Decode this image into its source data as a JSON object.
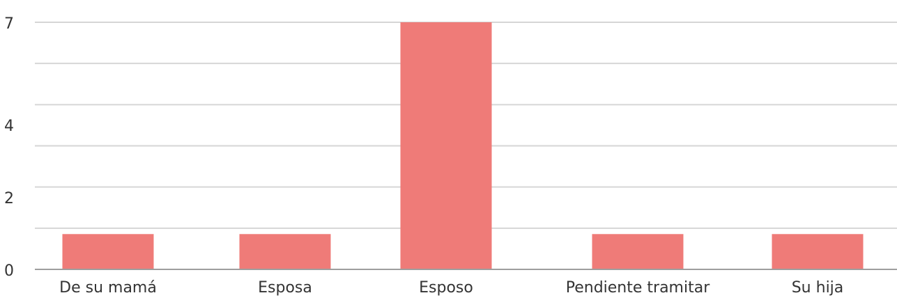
{
  "chart_data": {
    "type": "bar",
    "categories": [
      "De su mamá",
      "Esposa",
      "Esposo",
      "Pendiente tramitar",
      "Su hija"
    ],
    "values": [
      1,
      1,
      7,
      1,
      1
    ],
    "ylim": [
      0,
      7
    ],
    "yticks": [
      "0",
      "2",
      "4",
      "7"
    ],
    "grid": true,
    "legend": "none"
  },
  "colors": {
    "bar": "#ef7b78",
    "grid": "#d6d6d6",
    "axis": "#9e9e9e",
    "text": "#333333"
  }
}
